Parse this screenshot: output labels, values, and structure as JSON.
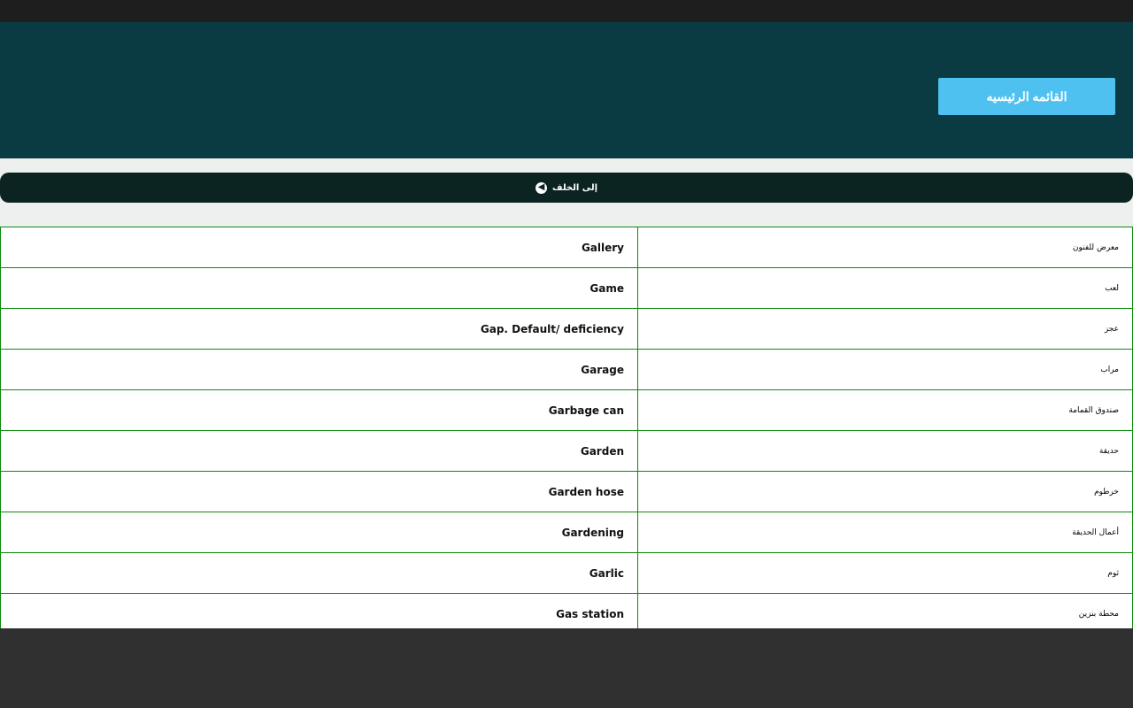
{
  "header": {
    "main_menu_label": "القائمه الرئيسيه"
  },
  "back_button": {
    "label": "إلى الخلف",
    "icon": "arrow-left-circle-icon"
  },
  "colors": {
    "header_bg": "#0a3a42",
    "button_bg": "#4fc1f0",
    "border": "#0a8a0a"
  },
  "rows": [
    {
      "en": "Gallery",
      "ar": "معرض للفنون"
    },
    {
      "en": "Game",
      "ar": "لعب"
    },
    {
      "en": "Gap. Default/ deficiency",
      "ar": "عجز"
    },
    {
      "en": "Garage",
      "ar": "مراب"
    },
    {
      "en": "Garbage can",
      "ar": "صندوق القمامة"
    },
    {
      "en": "Garden",
      "ar": "حديقة"
    },
    {
      "en": "Garden hose",
      "ar": "خرطوم"
    },
    {
      "en": "Gardening",
      "ar": "أعمال الحديقة"
    },
    {
      "en": "Garlic",
      "ar": "ثوم"
    },
    {
      "en": "Gas station",
      "ar": "محطة بنزين"
    }
  ]
}
